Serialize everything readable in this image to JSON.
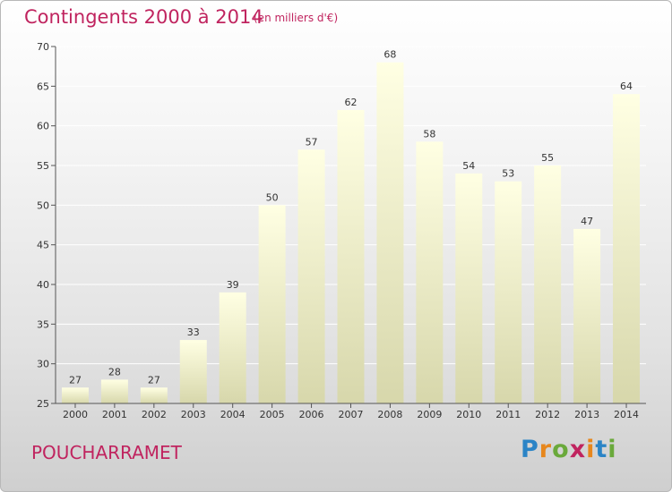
{
  "title": "Contingents 2000 à 2014",
  "subtitle": "(en milliers d'€)",
  "commune": "POUCHARRAMET",
  "logo": {
    "p": "P",
    "r": "r",
    "o": "o",
    "x": "x",
    "i1": "i",
    "t": "t",
    "i2": "i"
  },
  "colors": {
    "title": "#c0245f",
    "bar_top": "#ffffe3",
    "bar_bottom": "#d7d7ab",
    "axis": "#555555",
    "grid": "#ffffff"
  },
  "chart_data": {
    "type": "bar",
    "title": "Contingents 2000 à 2014",
    "subtitle": "(en milliers d'€)",
    "categories": [
      "2000",
      "2001",
      "2002",
      "2003",
      "2004",
      "2005",
      "2006",
      "2007",
      "2008",
      "2009",
      "2010",
      "2011",
      "2012",
      "2013",
      "2014"
    ],
    "values": [
      27,
      28,
      27,
      33,
      39,
      50,
      57,
      62,
      68,
      58,
      54,
      53,
      55,
      47,
      64
    ],
    "ylim": [
      25,
      70
    ],
    "yticks": [
      25,
      30,
      35,
      40,
      45,
      50,
      55,
      60,
      65,
      70
    ],
    "grid": true,
    "data_labels": true
  }
}
